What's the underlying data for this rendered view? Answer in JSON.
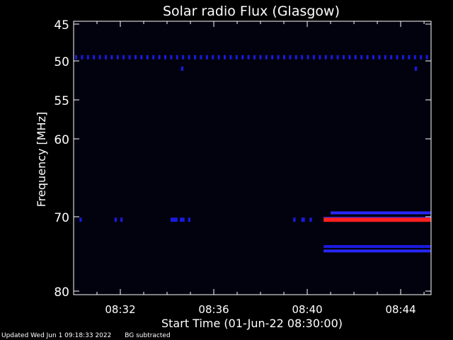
{
  "chart_data": {
    "type": "heatmap",
    "title": "Solar radio Flux (Glasgow)",
    "xlabel": "Start Time (01-Jun-22 08:30:00)",
    "ylabel": "Frequency [MHz]",
    "x_ticks": [
      "08:32",
      "08:36",
      "08:40",
      "08:44"
    ],
    "y_ticks": [
      "45",
      "50",
      "55",
      "60",
      "70",
      "80"
    ],
    "x_range_minutes": [
      0,
      15.3
    ],
    "x_tick_minutes": [
      2,
      6,
      10,
      14
    ],
    "y_tick_values": [
      45,
      50,
      55,
      60,
      70,
      80
    ],
    "colors": {
      "background": "#000000",
      "plot_background": "#02020e",
      "weak": "#1a1ae0",
      "medium": "#2828ff",
      "strong": "#ff2020",
      "axis": "#ffffff"
    },
    "features": [
      {
        "kind": "dashed-band",
        "freq": 49.5,
        "t_start": 0.0,
        "t_end": 15.3,
        "level": "weak"
      },
      {
        "kind": "spot",
        "freq": 51.0,
        "t_start": 4.6,
        "t_end": 4.7,
        "level": "weak"
      },
      {
        "kind": "spot",
        "freq": 51.0,
        "t_start": 14.6,
        "t_end": 14.7,
        "level": "weak"
      },
      {
        "kind": "spot",
        "freq": 70.4,
        "t_start": 0.25,
        "t_end": 0.35,
        "level": "weak"
      },
      {
        "kind": "spot",
        "freq": 70.4,
        "t_start": 1.75,
        "t_end": 1.85,
        "level": "weak"
      },
      {
        "kind": "spot",
        "freq": 70.4,
        "t_start": 2.0,
        "t_end": 2.1,
        "level": "weak"
      },
      {
        "kind": "spot",
        "freq": 70.4,
        "t_start": 4.15,
        "t_end": 4.45,
        "level": "weak"
      },
      {
        "kind": "spot",
        "freq": 70.4,
        "t_start": 4.55,
        "t_end": 4.75,
        "level": "weak"
      },
      {
        "kind": "spot",
        "freq": 70.4,
        "t_start": 4.9,
        "t_end": 5.0,
        "level": "weak"
      },
      {
        "kind": "spot",
        "freq": 70.4,
        "t_start": 9.4,
        "t_end": 9.5,
        "level": "weak"
      },
      {
        "kind": "spot",
        "freq": 70.4,
        "t_start": 9.75,
        "t_end": 9.9,
        "level": "weak"
      },
      {
        "kind": "spot",
        "freq": 70.4,
        "t_start": 10.1,
        "t_end": 10.2,
        "level": "weak"
      },
      {
        "kind": "band",
        "freq": 69.5,
        "t_start": 11.0,
        "t_end": 15.3,
        "level": "medium"
      },
      {
        "kind": "band",
        "freq": 70.4,
        "t_start": 10.7,
        "t_end": 15.3,
        "level": "strong"
      },
      {
        "kind": "band",
        "freq": 74.0,
        "t_start": 10.7,
        "t_end": 15.3,
        "level": "weak"
      },
      {
        "kind": "band",
        "freq": 74.6,
        "t_start": 10.7,
        "t_end": 15.3,
        "level": "medium"
      }
    ]
  },
  "footer": {
    "updated": "Updated Wed Jun  1 09:18:33 2022",
    "note": "BG subtracted"
  }
}
